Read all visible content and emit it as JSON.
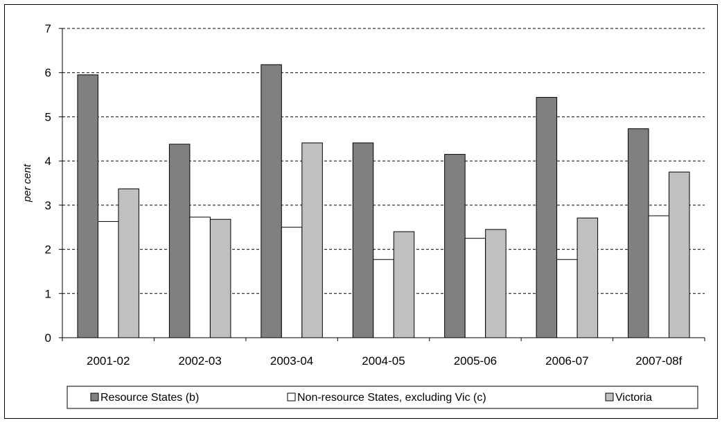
{
  "chart_data": {
    "type": "bar",
    "title": "",
    "xlabel": "",
    "ylabel": "per cent",
    "ylim": [
      0,
      7
    ],
    "yticks": [
      0,
      1,
      2,
      3,
      4,
      5,
      6,
      7
    ],
    "grid": true,
    "legend_position": "bottom",
    "categories": [
      "2001-02",
      "2002-03",
      "2003-04",
      "2004-05",
      "2005-06",
      "2006-07",
      "2007-08f"
    ],
    "series": [
      {
        "name": "Resource States (b)",
        "color": "#808080",
        "values": [
          5.95,
          4.38,
          6.18,
          4.41,
          4.15,
          5.44,
          4.73
        ]
      },
      {
        "name": "Non-resource States, excluding Vic (c)",
        "color": "#ffffff",
        "values": [
          2.63,
          2.73,
          2.5,
          1.77,
          2.25,
          1.77,
          2.76
        ]
      },
      {
        "name": "Victoria",
        "color": "#c0c0c0",
        "values": [
          3.37,
          2.68,
          4.41,
          2.4,
          2.45,
          2.71,
          3.75
        ]
      }
    ]
  }
}
